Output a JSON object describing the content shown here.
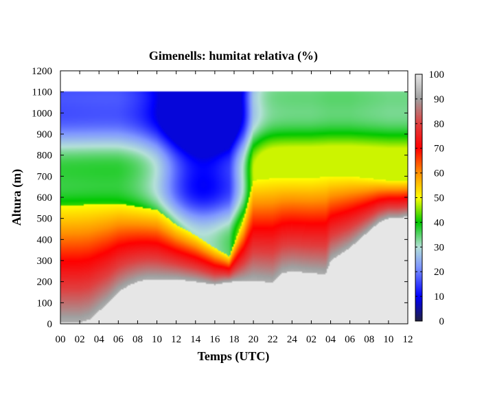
{
  "chart_data": {
    "type": "heatmap",
    "title": "Gimenells: humitat relativa (%)",
    "xlabel": "Temps (UTC)",
    "ylabel": "Altura (m)",
    "x_tick_labels": [
      "00",
      "02",
      "04",
      "06",
      "08",
      "10",
      "12",
      "14",
      "16",
      "18",
      "20",
      "22",
      "24",
      "02",
      "04",
      "06",
      "08",
      "10",
      "12"
    ],
    "x_hours_elapsed_range": [
      0,
      36
    ],
    "ylim": [
      0,
      1200
    ],
    "y_ticks": [
      0,
      100,
      200,
      300,
      400,
      500,
      600,
      700,
      800,
      900,
      1000,
      1100,
      1200
    ],
    "colorbar": {
      "range": [
        0,
        100
      ],
      "ticks": [
        0,
        10,
        20,
        30,
        40,
        50,
        60,
        70,
        80,
        90,
        100
      ],
      "stops": [
        {
          "v": 0,
          "color": "#202040"
        },
        {
          "v": 10,
          "color": "#0000ff"
        },
        {
          "v": 22,
          "color": "#8098ff"
        },
        {
          "v": 30,
          "color": "#b4e0d8"
        },
        {
          "v": 40,
          "color": "#00c800"
        },
        {
          "v": 50,
          "color": "#ffff00"
        },
        {
          "v": 60,
          "color": "#ff9000"
        },
        {
          "v": 70,
          "color": "#ff0000"
        },
        {
          "v": 80,
          "color": "#e04040"
        },
        {
          "v": 90,
          "color": "#a0a0a0"
        },
        {
          "v": 100,
          "color": "#e6e6e6"
        }
      ]
    },
    "ground_profile_top_m": [
      {
        "x": 0,
        "y": 5
      },
      {
        "x": 2,
        "y": 5
      },
      {
        "x": 3,
        "y": 20
      },
      {
        "x": 4,
        "y": 60
      },
      {
        "x": 5,
        "y": 100
      },
      {
        "x": 6,
        "y": 150
      },
      {
        "x": 7,
        "y": 180
      },
      {
        "x": 8,
        "y": 200
      },
      {
        "x": 9,
        "y": 210
      },
      {
        "x": 10,
        "y": 210
      },
      {
        "x": 12,
        "y": 210
      },
      {
        "x": 14,
        "y": 200
      },
      {
        "x": 16,
        "y": 185
      },
      {
        "x": 17,
        "y": 195
      },
      {
        "x": 18,
        "y": 200
      },
      {
        "x": 20,
        "y": 205
      },
      {
        "x": 22,
        "y": 195
      },
      {
        "x": 23,
        "y": 240
      },
      {
        "x": 24,
        "y": 250
      },
      {
        "x": 26,
        "y": 240
      },
      {
        "x": 27.5,
        "y": 235
      },
      {
        "x": 28,
        "y": 300
      },
      {
        "x": 29,
        "y": 330
      },
      {
        "x": 30,
        "y": 360
      },
      {
        "x": 31,
        "y": 400
      },
      {
        "x": 32,
        "y": 440
      },
      {
        "x": 33,
        "y": 480
      },
      {
        "x": 34,
        "y": 500
      },
      {
        "x": 35,
        "y": 500
      },
      {
        "x": 36,
        "y": 510
      }
    ],
    "boundary_layer_top_m": [
      {
        "x": 0,
        "y": 560
      },
      {
        "x": 6,
        "y": 570
      },
      {
        "x": 10,
        "y": 540
      },
      {
        "x": 12,
        "y": 470
      },
      {
        "x": 14,
        "y": 420
      },
      {
        "x": 16,
        "y": 360
      },
      {
        "x": 17.5,
        "y": 320
      },
      {
        "x": 19,
        "y": 500
      },
      {
        "x": 20,
        "y": 680
      },
      {
        "x": 22,
        "y": 690
      },
      {
        "x": 24,
        "y": 690
      },
      {
        "x": 26,
        "y": 690
      },
      {
        "x": 28,
        "y": 700
      },
      {
        "x": 30,
        "y": 700
      },
      {
        "x": 32,
        "y": 690
      },
      {
        "x": 34,
        "y": 680
      },
      {
        "x": 36,
        "y": 680
      }
    ],
    "data_top_m": 1100,
    "grid": false,
    "legend": "colorbar-right"
  }
}
